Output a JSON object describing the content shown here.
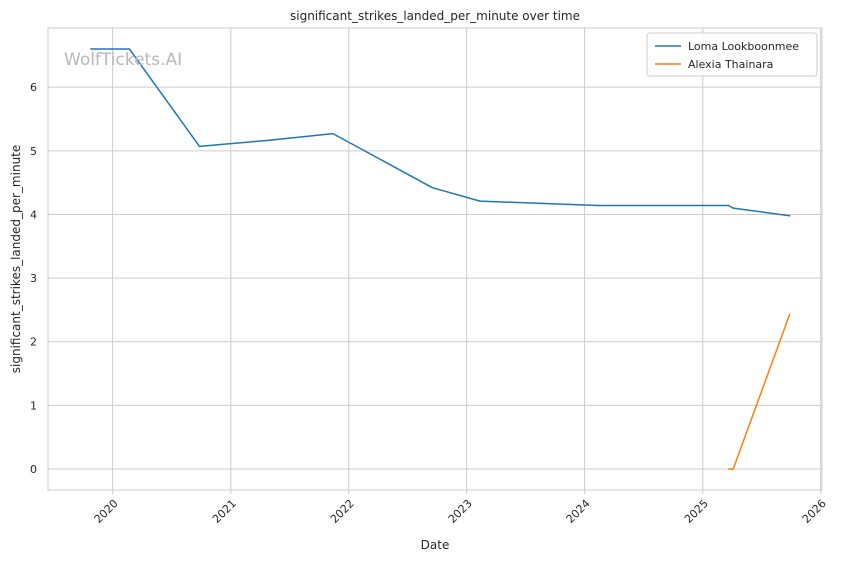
{
  "chart_data": {
    "type": "line",
    "title": "significant_strikes_landed_per_minute over time",
    "xlabel": "Date",
    "ylabel": "significant_strikes_landed_per_minute",
    "watermark": "WolfTickets.AI",
    "x_ticks": [
      "2020",
      "2021",
      "2022",
      "2023",
      "2024",
      "2025",
      "2026"
    ],
    "y_ticks": [
      "0",
      "1",
      "2",
      "3",
      "4",
      "5",
      "6"
    ],
    "xlim": [
      "2019-06-15",
      "2026-01-05"
    ],
    "ylim": [
      -0.33,
      6.93
    ],
    "grid": true,
    "legend_position": "top-right",
    "series": [
      {
        "name": "Loma Lookboonmee",
        "color": "#1f77b4",
        "points": [
          {
            "x": "2019-10-26",
            "y": 6.6
          },
          {
            "x": "2020-02-22",
            "y": 6.6
          },
          {
            "x": "2020-09-26",
            "y": 5.07
          },
          {
            "x": "2021-05-08",
            "y": 5.17
          },
          {
            "x": "2021-11-13",
            "y": 5.27
          },
          {
            "x": "2022-09-17",
            "y": 4.42
          },
          {
            "x": "2023-02-11",
            "y": 4.21
          },
          {
            "x": "2024-02-10",
            "y": 4.14
          },
          {
            "x": "2025-03-22",
            "y": 4.14
          },
          {
            "x": "2025-04-05",
            "y": 4.1
          },
          {
            "x": "2025-09-27",
            "y": 3.98
          }
        ]
      },
      {
        "name": "Alexia Thainara",
        "color": "#ff7f0e",
        "points": [
          {
            "x": "2025-03-22",
            "y": 0.0
          },
          {
            "x": "2025-04-05",
            "y": 0.0
          },
          {
            "x": "2025-09-27",
            "y": 2.43
          }
        ]
      }
    ]
  }
}
